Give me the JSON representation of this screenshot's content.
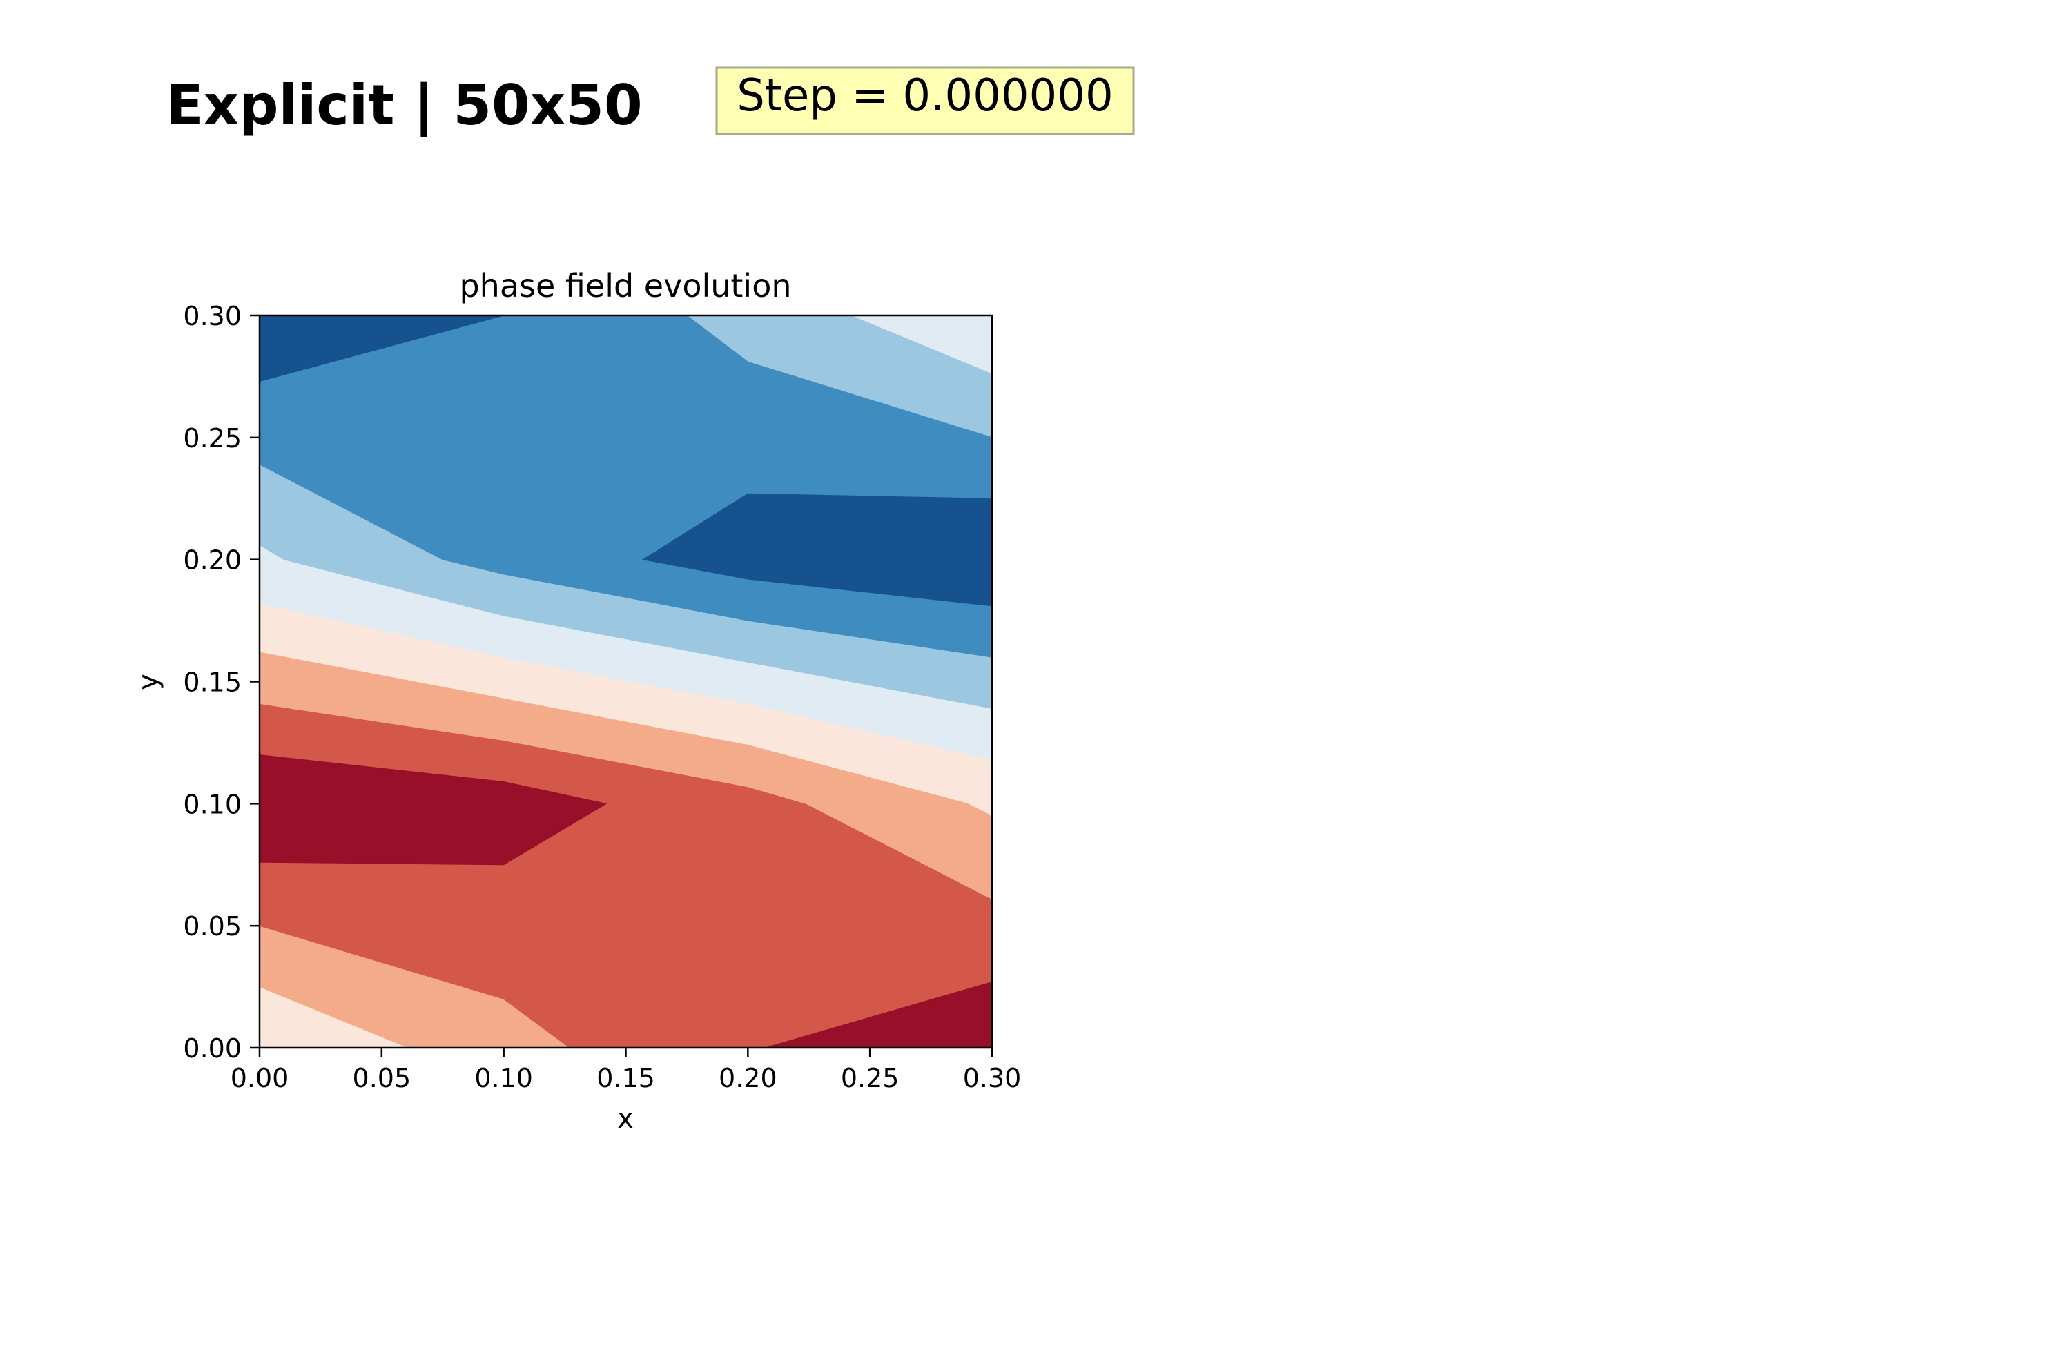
{
  "figure": {
    "title": "Explicit | 50x50",
    "step_label": "Step = 0.000000",
    "step_box_fill": "#ffffb3",
    "step_box_edge": "#a8a88a"
  },
  "chart_data": {
    "type": "contourf",
    "title": "phase field evolution",
    "xlabel": "x",
    "ylabel": "y",
    "xlim": [
      0,
      0.3
    ],
    "ylim": [
      0,
      0.3
    ],
    "xticks": [
      0,
      0.05,
      0.1,
      0.15,
      0.2,
      0.25,
      0.3
    ],
    "yticks": [
      0,
      0.05,
      0.1,
      0.15,
      0.2,
      0.25,
      0.3
    ],
    "xtick_labels": [
      "0.00",
      "0.05",
      "0.10",
      "0.15",
      "0.20",
      "0.25",
      "0.30"
    ],
    "ytick_labels": [
      "0.00",
      "0.05",
      "0.10",
      "0.15",
      "0.20",
      "0.25",
      "0.30"
    ],
    "colormap": "RdBu",
    "grid": false,
    "levels": [
      {
        "color": "#fbe6dc",
        "polygon": [
          [
            0,
            0
          ],
          [
            0.3,
            0
          ],
          [
            0.3,
            0.3
          ],
          [
            0,
            0.3
          ]
        ]
      },
      {
        "color": "#f4ab8a",
        "polygon": [
          [
            0,
            0.025
          ],
          [
            0.061,
            0
          ],
          [
            0.3,
            0
          ],
          [
            0.3,
            0.3
          ],
          [
            0,
            0.3
          ]
        ]
      },
      {
        "color": "#d3584a",
        "polygon": [
          [
            0,
            0.05
          ],
          [
            0.1,
            0.02
          ],
          [
            0.127,
            0
          ],
          [
            0.3,
            0
          ],
          [
            0.3,
            0.3
          ],
          [
            0,
            0.3
          ]
        ]
      },
      {
        "color": "#fbe6dc",
        "polygon": [
          [
            0,
            0.141
          ],
          [
            0.1,
            0.126
          ],
          [
            0.2,
            0.107
          ],
          [
            0.224,
            0.1
          ],
          [
            0.3,
            0.061
          ],
          [
            0.3,
            0.3
          ],
          [
            0,
            0.3
          ]
        ]
      },
      {
        "color": "#f4ab8a",
        "polygon": [
          [
            0,
            0.141
          ],
          [
            0.1,
            0.126
          ],
          [
            0.2,
            0.107
          ],
          [
            0.224,
            0.1
          ],
          [
            0.3,
            0.061
          ],
          [
            0.3,
            0.095
          ],
          [
            0.29,
            0.1
          ],
          [
            0.2,
            0.124
          ],
          [
            0.1,
            0.143
          ],
          [
            0,
            0.162
          ]
        ]
      },
      {
        "color": "#e0ebf3",
        "polygon": [
          [
            0,
            0.182
          ],
          [
            0.1,
            0.16
          ],
          [
            0.2,
            0.141
          ],
          [
            0.3,
            0.118
          ],
          [
            0.3,
            0.3
          ],
          [
            0,
            0.3
          ]
        ]
      },
      {
        "color": "#9bc8e0",
        "polygon": [
          [
            0,
            0.206
          ],
          [
            0.01,
            0.2
          ],
          [
            0.1,
            0.177
          ],
          [
            0.2,
            0.158
          ],
          [
            0.3,
            0.139
          ],
          [
            0.3,
            0.276
          ],
          [
            0.242,
            0.3
          ],
          [
            0,
            0.3
          ]
        ]
      },
      {
        "color": "#3f8cc0",
        "polygon": [
          [
            0,
            0.239
          ],
          [
            0.075,
            0.2
          ],
          [
            0.1,
            0.194
          ],
          [
            0.2,
            0.175
          ],
          [
            0.3,
            0.16
          ],
          [
            0.3,
            0.25
          ],
          [
            0.2,
            0.281
          ],
          [
            0.175,
            0.3
          ],
          [
            0,
            0.3
          ]
        ]
      },
      {
        "color": "#175290",
        "polygon": [
          [
            0,
            0.273
          ],
          [
            0.1,
            0.3
          ],
          [
            0,
            0.3
          ]
        ]
      },
      {
        "color": "#175290",
        "polygon": [
          [
            0.157,
            0.2
          ],
          [
            0.2,
            0.227
          ],
          [
            0.3,
            0.225
          ],
          [
            0.3,
            0.181
          ],
          [
            0.2,
            0.192
          ]
        ]
      },
      {
        "color": "#970f28",
        "polygon": [
          [
            0,
            0.12
          ],
          [
            0.1,
            0.109
          ],
          [
            0.142,
            0.1
          ],
          [
            0.1,
            0.075
          ],
          [
            0,
            0.076
          ]
        ]
      },
      {
        "color": "#970f28",
        "polygon": [
          [
            0.207,
            0
          ],
          [
            0.3,
            0
          ],
          [
            0.3,
            0.027
          ]
        ]
      }
    ]
  }
}
